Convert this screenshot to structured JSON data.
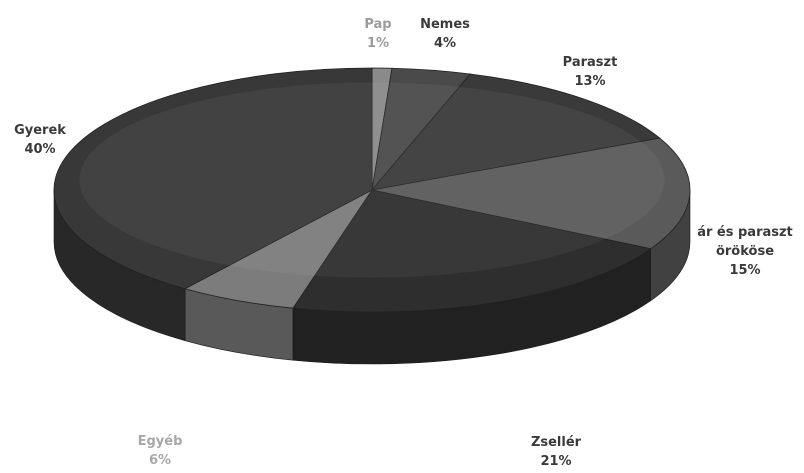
{
  "chart_data": {
    "type": "pie",
    "style": "3d",
    "title": "",
    "slices": [
      {
        "name": "Pap",
        "value": 1,
        "label": "1%",
        "color": "#8a8a8a",
        "text_color": "#9c9c9c"
      },
      {
        "name": "Nemes",
        "value": 4,
        "label": "4%",
        "color": "#4a4a4a",
        "text_color": "#3a3a3a"
      },
      {
        "name": "Paraszt",
        "value": 13,
        "label": "13%",
        "color": "#3a3a3a",
        "text_color": "#3a3a3a"
      },
      {
        "name": "ár és paraszt örököse",
        "name_lines": [
          "ár és paraszt",
          "örököse"
        ],
        "value": 15,
        "label": "15%",
        "color": "#5a5a5a",
        "text_color": "#3a3a3a"
      },
      {
        "name": "Zsellér",
        "value": 21,
        "label": "21%",
        "color": "#2e2e2e",
        "text_color": "#3a3a3a"
      },
      {
        "name": "Egyéb",
        "value": 6,
        "label": "6%",
        "color": "#7c7c7c",
        "text_color": "#a8a8a8"
      },
      {
        "name": "Gyerek",
        "value": 40,
        "label": "40%",
        "color": "#383838",
        "text_color": "#3a3a3a"
      }
    ]
  }
}
